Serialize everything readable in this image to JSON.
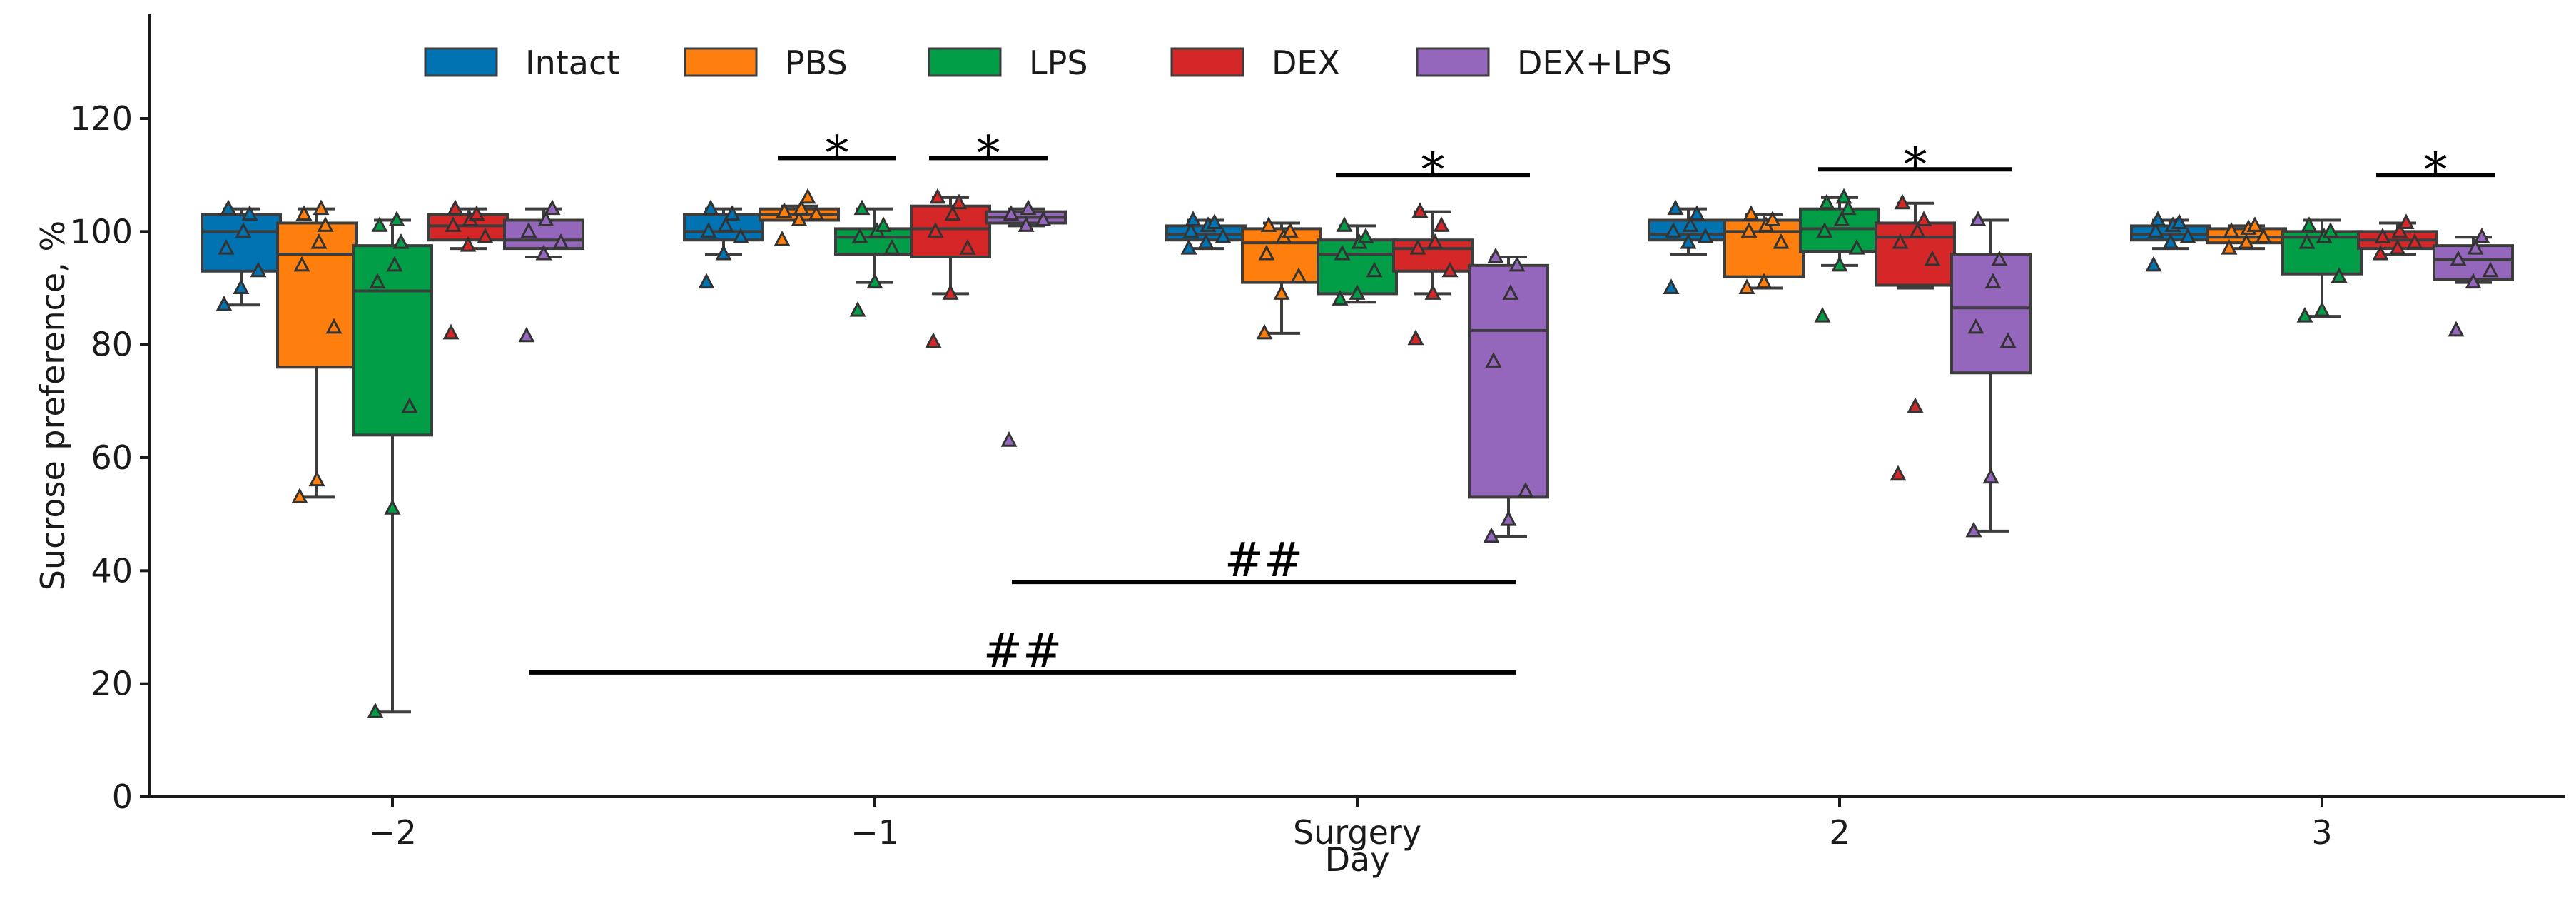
{
  "chart_data": {
    "type": "box",
    "title": "",
    "xlabel": "Day",
    "ylabel": "Sucrose preference, %",
    "ylim": [
      0,
      138
    ],
    "yticks": [
      0,
      20,
      40,
      60,
      80,
      100,
      120
    ],
    "categories": [
      "−2",
      "−1",
      "Surgery",
      "2",
      "3"
    ],
    "legend_position": "top-left",
    "series": [
      {
        "name": "Intact",
        "color": "#0173b2",
        "boxes": [
          {
            "q1": 93,
            "median": 100,
            "q3": 103,
            "whisker_low": 87,
            "whisker_high": 104,
            "points": [
              87,
              90,
              93,
              97,
              100,
              103,
              104
            ]
          },
          {
            "q1": 98.5,
            "median": 100,
            "q3": 103,
            "whisker_low": 96,
            "whisker_high": 104,
            "points": [
              91,
              96,
              99,
              100,
              101,
              103,
              104
            ]
          },
          {
            "q1": 98.5,
            "median": 99.5,
            "q3": 101,
            "whisker_low": 97,
            "whisker_high": 102,
            "points": [
              97,
              98,
              99,
              100,
              101,
              101.5,
              102
            ]
          },
          {
            "q1": 98.5,
            "median": 99.5,
            "q3": 102,
            "whisker_low": 96,
            "whisker_high": 104,
            "points": [
              90,
              98,
              99,
              100,
              101,
              103,
              104
            ]
          },
          {
            "q1": 98.5,
            "median": 99.5,
            "q3": 101,
            "whisker_low": 97,
            "whisker_high": 102,
            "points": [
              94,
              98,
              99,
              100,
              101,
              101.5,
              102
            ]
          }
        ]
      },
      {
        "name": "PBS",
        "color": "#fe7f0e",
        "boxes": [
          {
            "q1": 76,
            "median": 96,
            "q3": 101.5,
            "whisker_low": 53,
            "whisker_high": 104,
            "points": [
              53,
              56,
              83,
              94,
              98,
              101,
              103,
              104
            ]
          },
          {
            "q1": 102,
            "median": 103,
            "q3": 104,
            "whisker_low": 102,
            "whisker_high": 104.5,
            "points": [
              98.5,
              102,
              103,
              103.5,
              104,
              106
            ]
          },
          {
            "q1": 91,
            "median": 98,
            "q3": 100.5,
            "whisker_low": 82,
            "whisker_high": 101.5,
            "points": [
              82,
              89,
              92,
              96,
              99,
              100,
              101
            ]
          },
          {
            "q1": 92,
            "median": 100,
            "q3": 102,
            "whisker_low": 90,
            "whisker_high": 103,
            "points": [
              90,
              91,
              98,
              100,
              101,
              102,
              103
            ]
          },
          {
            "q1": 98,
            "median": 99,
            "q3": 100.5,
            "whisker_low": 97,
            "whisker_high": 101,
            "points": [
              97,
              98,
              99,
              100,
              100.5,
              101
            ]
          }
        ]
      },
      {
        "name": "LPS",
        "color": "#029e47",
        "boxes": [
          {
            "q1": 64,
            "median": 89.5,
            "q3": 97.5,
            "whisker_low": 15,
            "whisker_high": 102,
            "points": [
              15,
              51,
              69,
              91,
              94,
              98,
              101,
              102
            ]
          },
          {
            "q1": 96,
            "median": 99,
            "q3": 100.5,
            "whisker_low": 91,
            "whisker_high": 104,
            "points": [
              86,
              91,
              97,
              99,
              100,
              101,
              104
            ]
          },
          {
            "q1": 89,
            "median": 96,
            "q3": 98.5,
            "whisker_low": 87.5,
            "whisker_high": 101,
            "points": [
              88,
              89,
              93,
              96,
              98,
              99,
              101
            ]
          },
          {
            "q1": 96.5,
            "median": 100.5,
            "q3": 104,
            "whisker_low": 94,
            "whisker_high": 106,
            "points": [
              85,
              94,
              97,
              100,
              102,
              104,
              105,
              106
            ]
          },
          {
            "q1": 92.5,
            "median": 99,
            "q3": 100,
            "whisker_low": 85,
            "whisker_high": 102,
            "points": [
              85,
              86,
              92,
              98,
              99,
              100,
              101
            ]
          }
        ]
      },
      {
        "name": "DEX",
        "color": "#d62728",
        "boxes": [
          {
            "q1": 98.5,
            "median": 101,
            "q3": 103,
            "whisker_low": 97,
            "whisker_high": 104,
            "points": [
              82,
              97.5,
              99,
              101,
              102,
              103,
              104
            ]
          },
          {
            "q1": 95.5,
            "median": 100.5,
            "q3": 104.5,
            "whisker_low": 89,
            "whisker_high": 106,
            "points": [
              80.5,
              89,
              97,
              100,
              103,
              105,
              106
            ]
          },
          {
            "q1": 93,
            "median": 97,
            "q3": 98.5,
            "whisker_low": 89,
            "whisker_high": 103.5,
            "points": [
              81,
              89,
              93,
              97,
              98,
              101,
              103.5
            ]
          },
          {
            "q1": 90.5,
            "median": 99,
            "q3": 101.5,
            "whisker_low": 90,
            "whisker_high": 105,
            "points": [
              57,
              69,
              95,
              98,
              100,
              102,
              105
            ]
          },
          {
            "q1": 97,
            "median": 98.5,
            "q3": 100,
            "whisker_low": 96,
            "whisker_high": 101.5,
            "points": [
              96,
              97,
              98,
              99,
              100,
              101.5
            ]
          }
        ]
      },
      {
        "name": "DEX+LPS",
        "color": "#9467bd",
        "boxes": [
          {
            "q1": 97,
            "median": 98.5,
            "q3": 102,
            "whisker_low": 95.5,
            "whisker_high": 104,
            "points": [
              81.5,
              96,
              98,
              100,
              102,
              104
            ]
          },
          {
            "q1": 101.5,
            "median": 102.5,
            "q3": 103.5,
            "whisker_low": 101,
            "whisker_high": 104,
            "points": [
              63,
              101,
              102,
              103,
              104
            ]
          },
          {
            "q1": 53,
            "median": 82.5,
            "q3": 94,
            "whisker_low": 46,
            "whisker_high": 95.5,
            "points": [
              46,
              49,
              54,
              77,
              89,
              94,
              95.5
            ]
          },
          {
            "q1": 75,
            "median": 86.5,
            "q3": 96,
            "whisker_low": 47,
            "whisker_high": 102,
            "points": [
              47,
              56.5,
              80.5,
              83,
              91,
              95,
              102
            ]
          },
          {
            "q1": 91.5,
            "median": 95,
            "q3": 97.5,
            "whisker_low": 91,
            "whisker_high": 99,
            "points": [
              82.5,
              91,
              93,
              95,
              97,
              99
            ]
          }
        ]
      }
    ],
    "annotations": [
      {
        "label": "*",
        "category": "−1",
        "from_series": 1,
        "to_series": 2,
        "y": 113
      },
      {
        "label": "*",
        "category": "−1",
        "from_series": 3,
        "to_series": 4,
        "y": 113
      },
      {
        "label": "*",
        "category": "Surgery",
        "from_series": 2,
        "to_series": 4,
        "y": 110
      },
      {
        "label": "*",
        "category": "2",
        "from_series": 2,
        "to_series": 4,
        "y": 111
      },
      {
        "label": "*",
        "category": "3",
        "from_series": 3,
        "to_series": 4,
        "y": 110
      },
      {
        "label": "##",
        "from_category": "−1",
        "from_series": 4,
        "to_category": "Surgery",
        "to_series": 4,
        "y": 38
      },
      {
        "label": "##",
        "from_category": "−2",
        "from_series": 4,
        "to_category": "Surgery",
        "to_series": 4,
        "y": 22
      }
    ]
  }
}
